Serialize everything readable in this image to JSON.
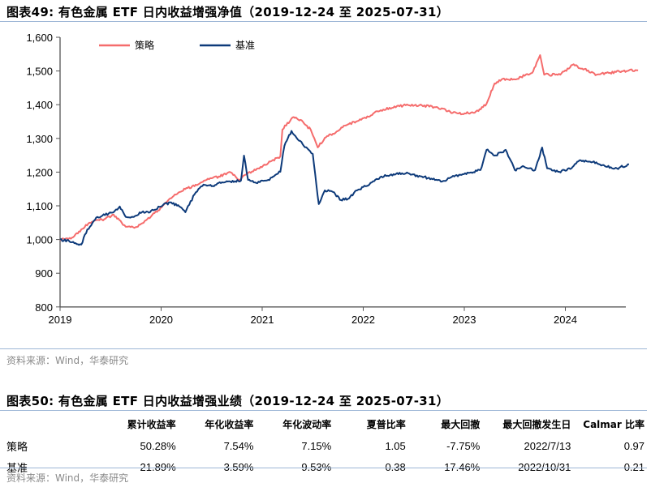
{
  "figure49": {
    "title": "图表49:  有色金属 ETF 日内收益增强净值（2019-12-24 至 2025-07-31）",
    "source": "资料来源：Wind，华泰研究"
  },
  "figure50": {
    "title": "图表50:  有色金属 ETF 日内收益增强业绩（2019-12-24 至 2025-07-31）",
    "source": "资料来源：Wind，华泰研究",
    "columns": [
      "",
      "累计收益率",
      "年化收益率",
      "年化波动率",
      "夏普比率",
      "最大回撤",
      "最大回撤发生日",
      "Calmar 比率"
    ],
    "rows": [
      {
        "name": "策略",
        "values": [
          "50.28%",
          "7.54%",
          "7.15%",
          "1.05",
          "-7.75%",
          "2022/7/13",
          "0.97"
        ]
      },
      {
        "name": "基准",
        "values": [
          "21.89%",
          "3.59%",
          "9.53%",
          "0.38",
          "-17.46%",
          "2022/10/31",
          "0.21"
        ]
      }
    ]
  },
  "colors": {
    "strategy": "#f56c6c",
    "benchmark": "#0d3a7a",
    "axis": "#555555",
    "rule": "#9db6d6"
  },
  "chart_data": {
    "type": "line",
    "title": "有色金属 ETF 日内收益增强净值（2019-12-24 至 2025-07-31）",
    "xlabel": "",
    "ylabel": "",
    "ylim": [
      800,
      1600
    ],
    "xlim": [
      2019.0,
      2024.6
    ],
    "yticks": [
      800,
      900,
      1000,
      1100,
      1200,
      1300,
      1400,
      1500,
      1600
    ],
    "ytick_labels": [
      "800",
      "900",
      "1,000",
      "1,100",
      "1,200",
      "1,300",
      "1,400",
      "1,500",
      "1,600"
    ],
    "xticks": [
      2019,
      2020,
      2021,
      2022,
      2023,
      2024
    ],
    "xtick_labels": [
      "2019",
      "2020",
      "2021",
      "2022",
      "2023",
      "2024"
    ],
    "grid": false,
    "legend_position": "top-left",
    "series": [
      {
        "name": "策略",
        "color": "#f56c6c",
        "x": [
          2019.0,
          2019.13,
          2019.21,
          2019.29,
          2019.45,
          2019.53,
          2019.61,
          2019.65,
          2019.77,
          2019.85,
          2019.97,
          2020.09,
          2020.17,
          2020.25,
          2020.33,
          2020.45,
          2020.57,
          2020.69,
          2020.77,
          2020.85,
          2020.96,
          2021.18,
          2021.2,
          2021.3,
          2021.38,
          2021.48,
          2021.55,
          2021.62,
          2021.7,
          2021.82,
          2021.98,
          2022.1,
          2022.26,
          2022.42,
          2022.58,
          2022.74,
          2022.86,
          2022.98,
          2023.14,
          2023.22,
          2023.3,
          2023.38,
          2023.5,
          2023.67,
          2023.75,
          2023.79,
          2023.95,
          2024.07,
          2024.19,
          2024.31,
          2024.43,
          2024.63,
          2024.72
        ],
        "values": [
          1000,
          1007,
          1030,
          1050,
          1062,
          1074,
          1050,
          1038,
          1038,
          1057,
          1086,
          1122,
          1139,
          1153,
          1158,
          1177,
          1187,
          1199,
          1177,
          1194,
          1211,
          1247,
          1326,
          1362,
          1355,
          1326,
          1273,
          1302,
          1314,
          1338,
          1355,
          1374,
          1391,
          1398,
          1398,
          1391,
          1379,
          1372,
          1381,
          1403,
          1463,
          1477,
          1475,
          1494,
          1547,
          1489,
          1489,
          1518,
          1506,
          1489,
          1494,
          1502,
          1502
        ]
      },
      {
        "name": "基准",
        "color": "#0d3a7a",
        "x": [
          2019.0,
          2019.13,
          2019.21,
          2019.27,
          2019.37,
          2019.53,
          2019.59,
          2019.65,
          2019.73,
          2019.81,
          2019.89,
          2020.02,
          2020.1,
          2020.18,
          2020.24,
          2020.33,
          2020.42,
          2020.5,
          2020.58,
          2020.66,
          2020.79,
          2020.82,
          2020.86,
          2020.94,
          2021.06,
          2021.18,
          2021.22,
          2021.29,
          2021.34,
          2021.4,
          2021.46,
          2021.5,
          2021.56,
          2021.62,
          2021.7,
          2021.78,
          2021.86,
          2021.94,
          2022.06,
          2022.18,
          2022.3,
          2022.42,
          2022.58,
          2022.78,
          2022.9,
          2023.02,
          2023.16,
          2023.22,
          2023.3,
          2023.41,
          2023.5,
          2023.58,
          2023.7,
          2023.77,
          2023.82,
          2023.94,
          2024.06,
          2024.14,
          2024.27,
          2024.39,
          2024.51,
          2024.63
        ],
        "values": [
          1000,
          993,
          985,
          1030,
          1067,
          1081,
          1098,
          1067,
          1067,
          1081,
          1081,
          1103,
          1110,
          1098,
          1081,
          1134,
          1163,
          1158,
          1170,
          1172,
          1175,
          1249,
          1177,
          1168,
          1177,
          1201,
          1278,
          1322,
          1302,
          1283,
          1266,
          1254,
          1105,
          1146,
          1141,
          1117,
          1122,
          1146,
          1163,
          1187,
          1194,
          1196,
          1187,
          1172,
          1187,
          1194,
          1206,
          1266,
          1249,
          1266,
          1206,
          1218,
          1206,
          1273,
          1211,
          1201,
          1211,
          1235,
          1230,
          1218,
          1211,
          1223
        ]
      }
    ]
  }
}
